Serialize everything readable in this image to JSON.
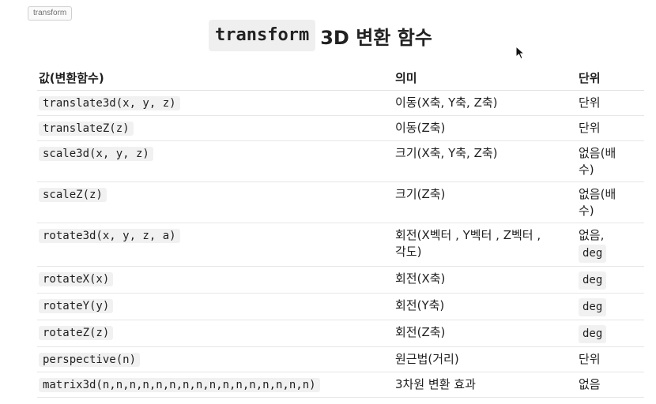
{
  "chip": "transform",
  "title": {
    "code": "transform",
    "text": "3D 변환 함수"
  },
  "headers": {
    "value": "값(변환함수)",
    "meaning": "의미",
    "unit": "단위"
  },
  "rows": [
    {
      "value": "translate3d(x, y, z)",
      "meaning": "이동(X축, Y축, Z축)",
      "unit": "단위"
    },
    {
      "value": "translateZ(z)",
      "meaning": "이동(Z축)",
      "unit": "단위"
    },
    {
      "value": "scale3d(x, y, z)",
      "meaning": "크기(X축, Y축, Z축)",
      "unit": "없음(배\n수)"
    },
    {
      "value": "scaleZ(z)",
      "meaning": "크기(Z축)",
      "unit": "없음(배\n수)"
    },
    {
      "value": "rotate3d(x, y, z, a)",
      "meaning": "회전(X벡터 , Y벡터 , Z벡터 ,\n각도)",
      "unit": "없음,",
      "unit_code": "deg"
    },
    {
      "value": "rotateX(x)",
      "meaning": "회전(X축)",
      "unit_code": "deg"
    },
    {
      "value": "rotateY(y)",
      "meaning": "회전(Y축)",
      "unit_code": "deg"
    },
    {
      "value": "rotateZ(z)",
      "meaning": "회전(Z축)",
      "unit_code": "deg"
    },
    {
      "value": "perspective(n)",
      "meaning": "원근법(거리)",
      "unit": "단위"
    },
    {
      "value": "matrix3d(n,n,n,n,n,n,n,n,n,n,n,n,n,n,n,n)",
      "meaning": "3차원 변환 효과",
      "unit": "없음"
    }
  ]
}
